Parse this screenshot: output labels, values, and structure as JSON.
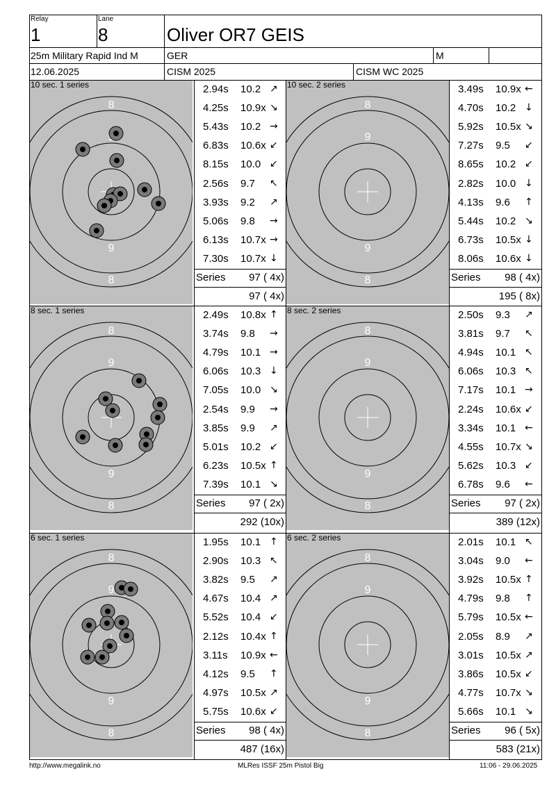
{
  "header": {
    "relay_caption": "Relay",
    "relay": "1",
    "lane_caption": "Lane",
    "lane": "8",
    "shooter": "Oliver OR7 GEIS",
    "event": "25m Military Rapid Ind M",
    "nation": "GER",
    "gender": "M",
    "date": "12.06.2025",
    "competition": "CISM 2025",
    "match": "CISM WC 2025"
  },
  "target": {
    "ring_numbers": [
      "8",
      "9"
    ],
    "background_color": "#c0c0c0",
    "shot_color": "#000000"
  },
  "series": [
    {
      "label": "10 sec. 1 series",
      "shots": [
        {
          "time": "2.94s",
          "score": "10.2",
          "dir": "up-right"
        },
        {
          "time": "4.25s",
          "score": "10.9x",
          "dir": "down-right"
        },
        {
          "time": "5.43s",
          "score": "10.2",
          "dir": "right"
        },
        {
          "time": "6.83s",
          "score": "10.6x",
          "dir": "down-left"
        },
        {
          "time": "8.15s",
          "score": "10.0",
          "dir": "down-left"
        },
        {
          "time": "2.56s",
          "score": "9.7",
          "dir": "up-left"
        },
        {
          "time": "3.93s",
          "score": "9.2",
          "dir": "up-right"
        },
        {
          "time": "5.06s",
          "score": "9.8",
          "dir": "right"
        },
        {
          "time": "6.13s",
          "score": "10.7x",
          "dir": "right"
        },
        {
          "time": "7.30s",
          "score": "10.7x",
          "dir": "down"
        }
      ],
      "series_label": "Series",
      "series_total": "97 ( 4x)",
      "running_total": "97 ( 4x)"
    },
    {
      "label": "10 sec. 2 series",
      "shots": [
        {
          "time": "3.49s",
          "score": "10.9x",
          "dir": "left"
        },
        {
          "time": "4.70s",
          "score": "10.2",
          "dir": "down"
        },
        {
          "time": "5.92s",
          "score": "10.5x",
          "dir": "down-right"
        },
        {
          "time": "7.27s",
          "score": "9.5",
          "dir": "down-left"
        },
        {
          "time": "8.65s",
          "score": "10.2",
          "dir": "down-left"
        },
        {
          "time": "2.82s",
          "score": "10.0",
          "dir": "down"
        },
        {
          "time": "4.13s",
          "score": "9.6",
          "dir": "up"
        },
        {
          "time": "5.44s",
          "score": "10.2",
          "dir": "down-right"
        },
        {
          "time": "6.73s",
          "score": "10.5x",
          "dir": "down"
        },
        {
          "time": "8.06s",
          "score": "10.6x",
          "dir": "down"
        }
      ],
      "series_label": "Series",
      "series_total": "98 ( 4x)",
      "running_total": "195 ( 8x)"
    },
    {
      "label": "8 sec. 1 series",
      "shots": [
        {
          "time": "2.49s",
          "score": "10.8x",
          "dir": "up"
        },
        {
          "time": "3.74s",
          "score": "9.8",
          "dir": "right"
        },
        {
          "time": "4.79s",
          "score": "10.1",
          "dir": "right"
        },
        {
          "time": "6.06s",
          "score": "10.3",
          "dir": "down"
        },
        {
          "time": "7.05s",
          "score": "10.0",
          "dir": "down-right"
        },
        {
          "time": "2.54s",
          "score": "9.9",
          "dir": "right"
        },
        {
          "time": "3.85s",
          "score": "9.9",
          "dir": "up-right"
        },
        {
          "time": "5.01s",
          "score": "10.2",
          "dir": "down-left"
        },
        {
          "time": "6.23s",
          "score": "10.5x",
          "dir": "up"
        },
        {
          "time": "7.39s",
          "score": "10.1",
          "dir": "down-right"
        }
      ],
      "series_label": "Series",
      "series_total": "97 ( 2x)",
      "running_total": "292 (10x)"
    },
    {
      "label": "8 sec. 2 series",
      "shots": [
        {
          "time": "2.50s",
          "score": "9.3",
          "dir": "up-right"
        },
        {
          "time": "3.81s",
          "score": "9.7",
          "dir": "up-left"
        },
        {
          "time": "4.94s",
          "score": "10.1",
          "dir": "up-left"
        },
        {
          "time": "6.06s",
          "score": "10.3",
          "dir": "up-left"
        },
        {
          "time": "7.17s",
          "score": "10.1",
          "dir": "right"
        },
        {
          "time": "2.24s",
          "score": "10.6x",
          "dir": "down-left"
        },
        {
          "time": "3.34s",
          "score": "10.1",
          "dir": "left"
        },
        {
          "time": "4.55s",
          "score": "10.7x",
          "dir": "down-right"
        },
        {
          "time": "5.62s",
          "score": "10.3",
          "dir": "down-left"
        },
        {
          "time": "6.78s",
          "score": "9.6",
          "dir": "left"
        }
      ],
      "series_label": "Series",
      "series_total": "97 ( 2x)",
      "running_total": "389 (12x)"
    },
    {
      "label": "6 sec. 1 series",
      "shots": [
        {
          "time": "1.95s",
          "score": "10.1",
          "dir": "up"
        },
        {
          "time": "2.90s",
          "score": "10.3",
          "dir": "up-left"
        },
        {
          "time": "3.82s",
          "score": "9.5",
          "dir": "up-right"
        },
        {
          "time": "4.67s",
          "score": "10.4",
          "dir": "up-right"
        },
        {
          "time": "5.52s",
          "score": "10.4",
          "dir": "down-left"
        },
        {
          "time": "2.12s",
          "score": "10.4x",
          "dir": "up"
        },
        {
          "time": "3.11s",
          "score": "10.9x",
          "dir": "left"
        },
        {
          "time": "4.12s",
          "score": "9.5",
          "dir": "up"
        },
        {
          "time": "4.97s",
          "score": "10.5x",
          "dir": "up-right"
        },
        {
          "time": "5.75s",
          "score": "10.6x",
          "dir": "down-left"
        }
      ],
      "series_label": "Series",
      "series_total": "98 ( 4x)",
      "running_total": "487 (16x)"
    },
    {
      "label": "6 sec. 2 series",
      "shots": [
        {
          "time": "2.01s",
          "score": "10.1",
          "dir": "up-left"
        },
        {
          "time": "3.04s",
          "score": "9.0",
          "dir": "left"
        },
        {
          "time": "3.92s",
          "score": "10.5x",
          "dir": "up"
        },
        {
          "time": "4.79s",
          "score": "9.8",
          "dir": "up"
        },
        {
          "time": "5.79s",
          "score": "10.5x",
          "dir": "left"
        },
        {
          "time": "2.05s",
          "score": "8.9",
          "dir": "up-right"
        },
        {
          "time": "3.01s",
          "score": "10.5x",
          "dir": "up-right"
        },
        {
          "time": "3.86s",
          "score": "10.5x",
          "dir": "down-left"
        },
        {
          "time": "4.77s",
          "score": "10.7x",
          "dir": "down-right"
        },
        {
          "time": "5.66s",
          "score": "10.1",
          "dir": "down-right"
        }
      ],
      "series_label": "Series",
      "series_total": "96 ( 5x)",
      "running_total": "583 (21x)"
    }
  ],
  "footer": {
    "website": "http://www.megalink.no",
    "software": "MLRes ISSF 25m Pistol Big",
    "timestamp": "11:06 - 29.06.2025"
  }
}
